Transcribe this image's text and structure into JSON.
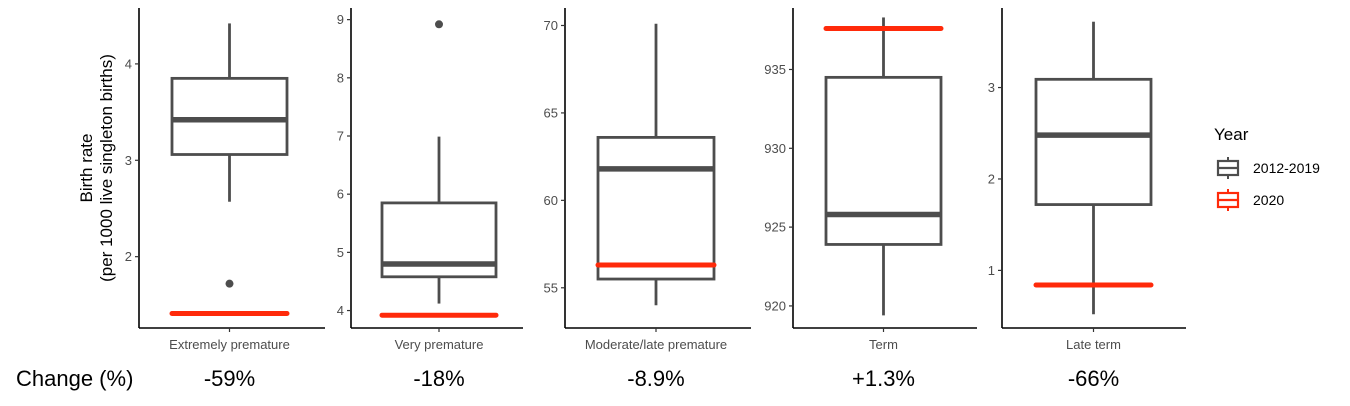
{
  "chart_data": {
    "type": "boxplot",
    "ylabel_line1": "Birth rate",
    "ylabel_line2": "(per 1000 live singleton births)",
    "change_header": "Change (%)",
    "legend": {
      "title": "Year",
      "entries": [
        {
          "label": "2012-2019",
          "color": "#4d4d4d"
        },
        {
          "label": "2020",
          "color": "#ff2a0a"
        }
      ]
    },
    "colors": {
      "box": "#4d4d4d",
      "current": "#ff2a0a",
      "axis": "#000000"
    },
    "panels": [
      {
        "category": "Extremely premature",
        "ylim": [
          1.26,
          4.58
        ],
        "ticks": [
          2,
          3,
          4
        ],
        "box": {
          "whisker_low": 2.57,
          "q1": 3.06,
          "median": 3.42,
          "q3": 3.85,
          "whisker_high": 4.42,
          "outliers": [
            1.72
          ]
        },
        "value_2020": 1.41,
        "change": "-59%"
      },
      {
        "category": "Very premature",
        "ylim": [
          3.7,
          9.2
        ],
        "ticks": [
          4,
          5,
          6,
          7,
          8,
          9
        ],
        "box": {
          "whisker_low": 4.12,
          "q1": 4.58,
          "median": 4.8,
          "q3": 5.85,
          "whisker_high": 6.99,
          "outliers": [
            8.92
          ]
        },
        "value_2020": 3.92,
        "change": "-18%"
      },
      {
        "category": "Moderate/late premature",
        "ylim": [
          52.7,
          71.0
        ],
        "ticks": [
          55,
          60,
          65,
          70
        ],
        "box": {
          "whisker_low": 54.0,
          "q1": 55.5,
          "median": 61.8,
          "q3": 63.6,
          "whisker_high": 70.1,
          "outliers": []
        },
        "value_2020": 56.3,
        "change": "-8.9%"
      },
      {
        "category": "Term",
        "ylim": [
          918.6,
          938.9
        ],
        "ticks": [
          920,
          925,
          930,
          935
        ],
        "box": {
          "whisker_low": 919.4,
          "q1": 923.9,
          "median": 925.8,
          "q3": 934.5,
          "whisker_high": 938.3,
          "outliers": []
        },
        "value_2020": 937.6,
        "change": "+1.3%"
      },
      {
        "category": "Late term",
        "ylim": [
          0.37,
          3.87
        ],
        "ticks": [
          1,
          2,
          3
        ],
        "box": {
          "whisker_low": 0.52,
          "q1": 1.72,
          "median": 2.48,
          "q3": 3.09,
          "whisker_high": 3.72,
          "outliers": []
        },
        "value_2020": 0.84,
        "change": "-66%"
      }
    ]
  }
}
